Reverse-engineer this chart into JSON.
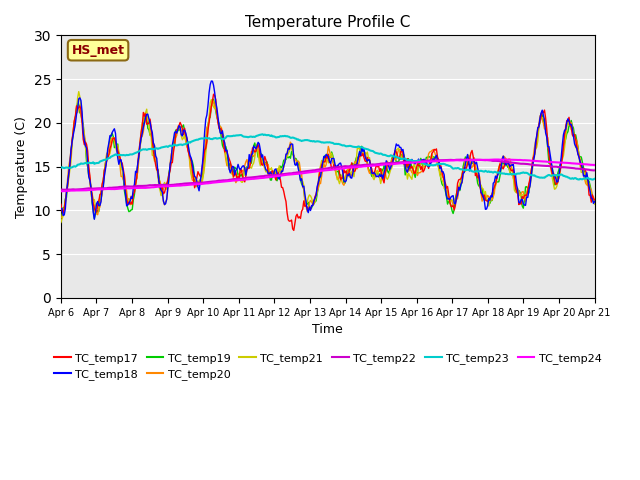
{
  "title": "Temperature Profile C",
  "xlabel": "Time",
  "ylabel": "Temperature (C)",
  "ylim": [
    0,
    30
  ],
  "yticks": [
    0,
    5,
    10,
    15,
    20,
    25,
    30
  ],
  "annotation": "HS_met",
  "series_colors": {
    "TC_temp17": "#ff0000",
    "TC_temp18": "#0000ff",
    "TC_temp19": "#00cc00",
    "TC_temp20": "#ff8800",
    "TC_temp21": "#cccc00",
    "TC_temp22": "#cc00cc",
    "TC_temp23": "#00cccc",
    "TC_temp24": "#ff00ff"
  },
  "x_tick_labels": [
    "Apr 6",
    "Apr 7",
    "Apr 8",
    "Apr 9",
    "Apr 10",
    "Apr 11",
    "Apr 12",
    "Apr 13",
    "Apr 14",
    "Apr 15",
    "Apr 16",
    "Apr 17",
    "Apr 18",
    "Apr 19",
    "Apr 20",
    "Apr 21"
  ],
  "background_color": "#e8e8e8",
  "fig_background": "#ffffff",
  "grid_color": "#ffffff",
  "n_points": 480
}
